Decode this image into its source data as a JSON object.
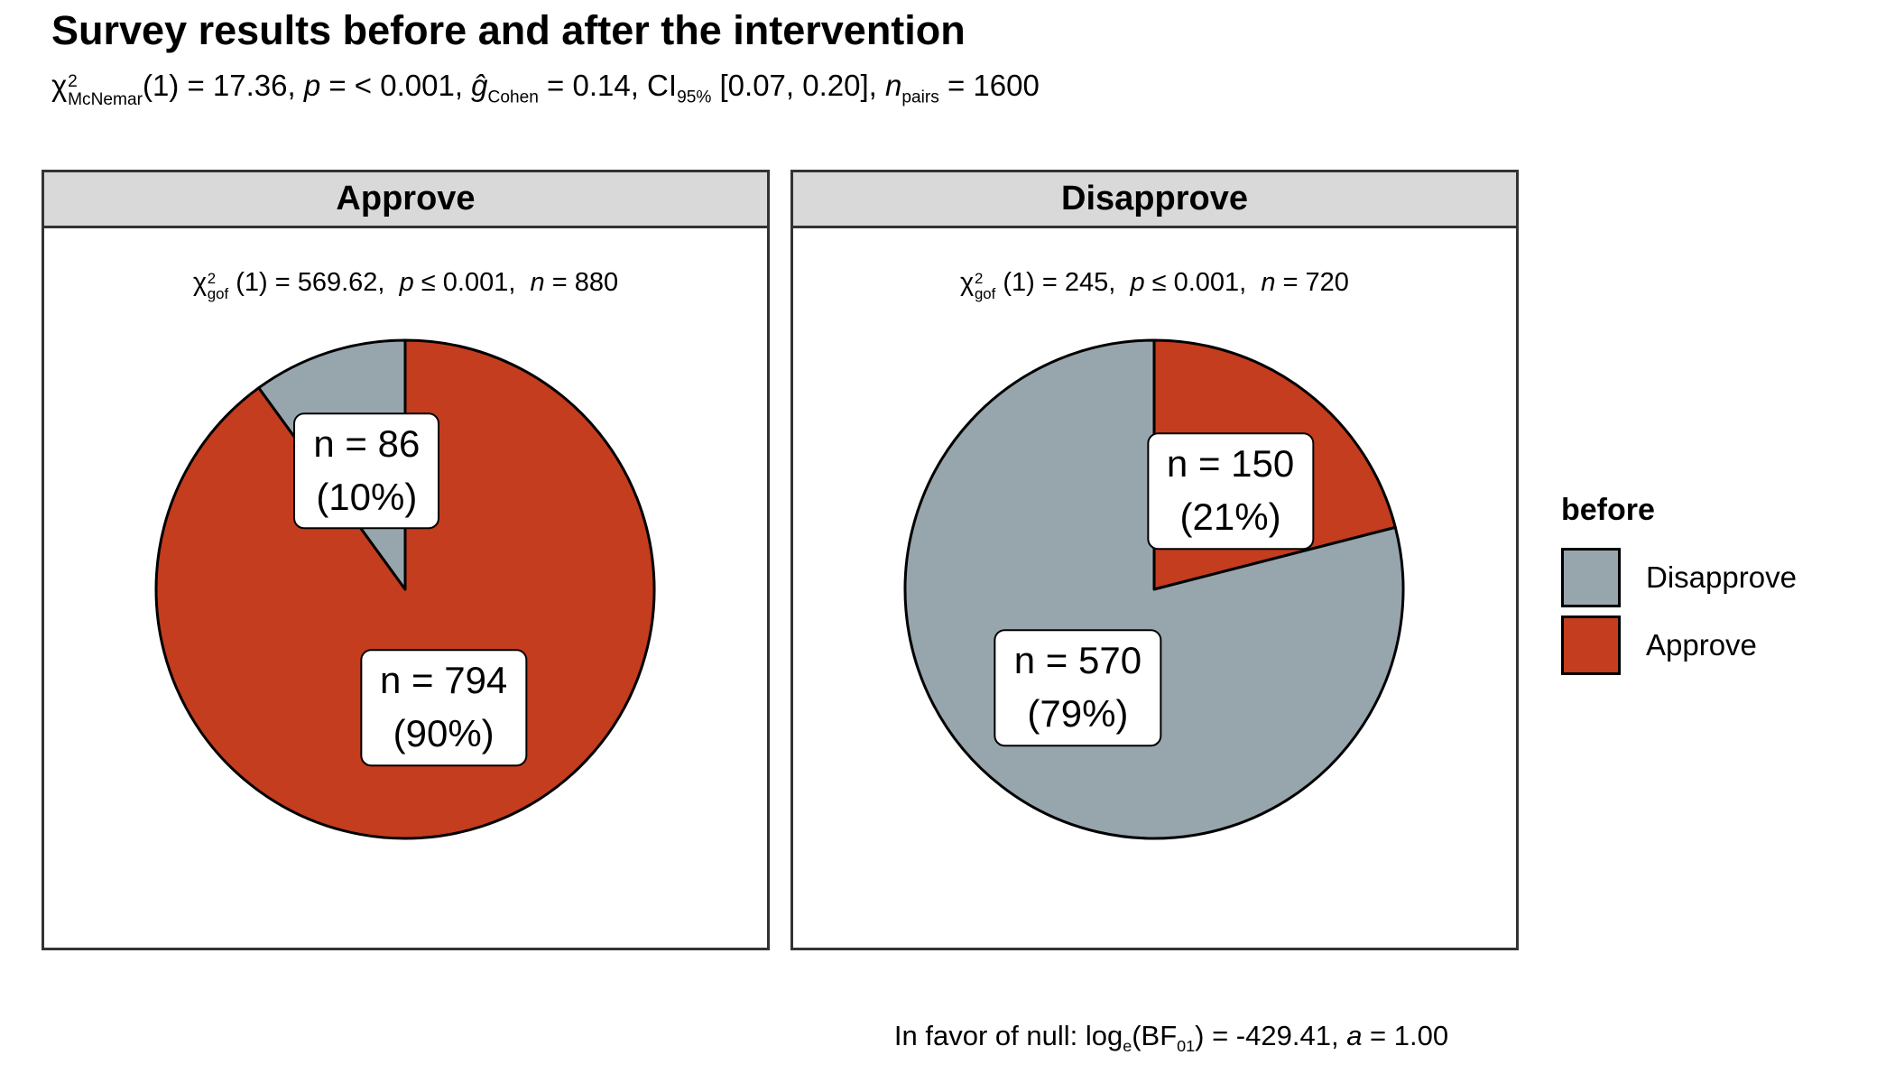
{
  "title": {
    "text": "Survey results before and after the intervention"
  },
  "subtitle": {
    "text": "χ²McNemar(1) = 17.36, p = < 0.001, ĝCohen = 0.14, CI95% [0.07, 0.20], npairs = 1600",
    "parts": [
      {
        "t": "χ"
      },
      {
        "stack": [
          "2",
          "McNemar"
        ]
      },
      {
        "t": "(1) = 17.36, "
      },
      {
        "i": "p"
      },
      {
        "t": " = < 0.001, "
      },
      {
        "i": "ĝ"
      },
      {
        "sub": "Cohen"
      },
      {
        "t": " = 0.14, CI"
      },
      {
        "sub": "95%"
      },
      {
        "t": " [0.07, 0.20], "
      },
      {
        "i": "n"
      },
      {
        "sub": "pairs"
      },
      {
        "t": " = 1600"
      }
    ]
  },
  "caption": {
    "text": "In favor of null: loge(BF01) = -429.41, a = 1.00",
    "parts": [
      {
        "t": "In favor of null: log"
      },
      {
        "sub": "e"
      },
      {
        "t": "(BF"
      },
      {
        "sub": "01"
      },
      {
        "t": ") = -429.41, "
      },
      {
        "i": "a"
      },
      {
        "t": " = 1.00"
      }
    ]
  },
  "legend": {
    "title": "before",
    "items": [
      {
        "label": "Disapprove",
        "color": "#97A6AD"
      },
      {
        "label": "Approve",
        "color": "#C33D1E"
      }
    ]
  },
  "colors": {
    "approve": "#C33D1E",
    "disapprove": "#97A6AD",
    "panel_header_bg": "#D9D9D9",
    "panel_border": "#333333",
    "pie_outline": "#000000",
    "background": "#FFFFFF"
  },
  "chart_data": {
    "type": "pie",
    "title": "Survey results before and after the intervention",
    "facet_variable": "after",
    "group_variable": "before",
    "n_total_pairs": 1600,
    "layout": {
      "slices_start": "top",
      "direction": "clockwise",
      "legend_position": "right",
      "facets_side_by_side": true
    },
    "facets": [
      {
        "label": "Approve",
        "n": 880,
        "stats_text": "χ²gof(1) = 569.62, p ≤ 0.001, n = 880",
        "stats_parts": [
          {
            "t": "χ"
          },
          {
            "stack": [
              "2",
              "gof"
            ]
          },
          {
            "t": " (1) = 569.62,  "
          },
          {
            "i": "p"
          },
          {
            "t": " ≤ 0.001,  "
          },
          {
            "i": "n"
          },
          {
            "t": " = 880"
          }
        ],
        "slices": [
          {
            "group": "Approve",
            "n": 794,
            "pct": 90,
            "n_label": "n = 794",
            "pct_label": "(90%)",
            "color": "#C33D1E"
          },
          {
            "group": "Disapprove",
            "n": 86,
            "pct": 10,
            "n_label": "n = 86",
            "pct_label": "(10%)",
            "color": "#97A6AD"
          }
        ]
      },
      {
        "label": "Disapprove",
        "n": 720,
        "stats_text": "χ²gof(1) = 245, p ≤ 0.001, n = 720",
        "stats_parts": [
          {
            "t": "χ"
          },
          {
            "stack": [
              "2",
              "gof"
            ]
          },
          {
            "t": " (1) = 245,  "
          },
          {
            "i": "p"
          },
          {
            "t": " ≤ 0.001,  "
          },
          {
            "i": "n"
          },
          {
            "t": " = 720"
          }
        ],
        "slices": [
          {
            "group": "Approve",
            "n": 150,
            "pct": 21,
            "n_label": "n = 150",
            "pct_label": "(21%)",
            "color": "#C33D1E"
          },
          {
            "group": "Disapprove",
            "n": 570,
            "pct": 79,
            "n_label": "n = 570",
            "pct_label": "(79%)",
            "color": "#97A6AD"
          }
        ]
      }
    ]
  }
}
